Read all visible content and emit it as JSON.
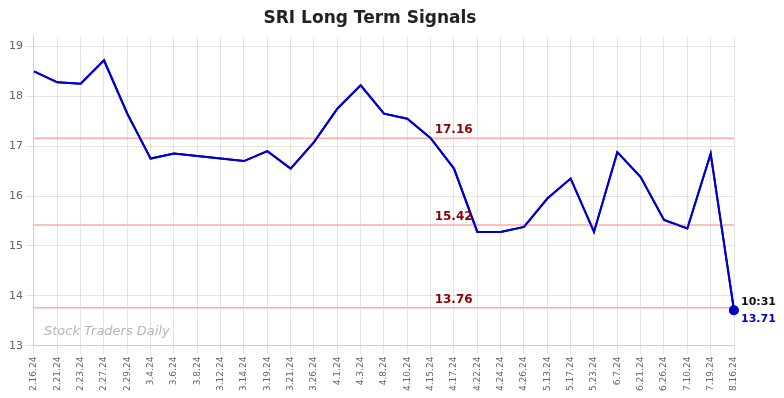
{
  "chart_data": {
    "type": "line",
    "title": "SRI Long Term Signals",
    "categories": [
      "2.16.24",
      "2.21.24",
      "2.23.24",
      "2.27.24",
      "2.29.24",
      "3.4.24",
      "3.6.24",
      "3.8.24",
      "3.12.24",
      "3.14.24",
      "3.19.24",
      "3.21.24",
      "3.26.24",
      "4.1.24",
      "4.3.24",
      "4.8.24",
      "4.10.24",
      "4.15.24",
      "4.17.24",
      "4.22.24",
      "4.24.24",
      "4.26.24",
      "5.13.24",
      "5.17.24",
      "5.23.24",
      "6.7.24",
      "6.21.24",
      "6.26.24",
      "7.10.24",
      "7.19.24",
      "8.16.24"
    ],
    "values": [
      18.5,
      18.28,
      18.25,
      18.72,
      17.65,
      16.75,
      16.85,
      16.8,
      16.75,
      16.7,
      16.9,
      16.55,
      17.08,
      17.75,
      18.22,
      17.65,
      17.55,
      17.16,
      16.55,
      15.28,
      15.28,
      15.38,
      15.95,
      16.35,
      15.28,
      16.88,
      16.38,
      15.52,
      15.35,
      16.85,
      13.71
    ],
    "color": "#0000cc",
    "ylim": [
      13.0,
      19.2
    ],
    "yticks": [
      13,
      14,
      15,
      16,
      17,
      18,
      19
    ],
    "grid": true,
    "hlines": [
      {
        "value": 17.16,
        "label": "17.16",
        "color": "#ffaaaa",
        "label_color": "#8b0000"
      },
      {
        "value": 15.42,
        "label": "15.42",
        "color": "#ffaaaa",
        "label_color": "#8b0000"
      },
      {
        "value": 13.76,
        "label": "13.76",
        "color": "#ffaaaa",
        "label_color": "#8b0000"
      }
    ],
    "annotations": [
      {
        "text": "10:31",
        "x": "8.16.24",
        "y": 13.71,
        "color": "#111111"
      },
      {
        "text": "13.71",
        "x": "8.16.24",
        "y": 13.71,
        "color": "#0000cc"
      },
      {
        "text": "Stock Traders Daily",
        "color": "#aaaaaa"
      }
    ]
  }
}
